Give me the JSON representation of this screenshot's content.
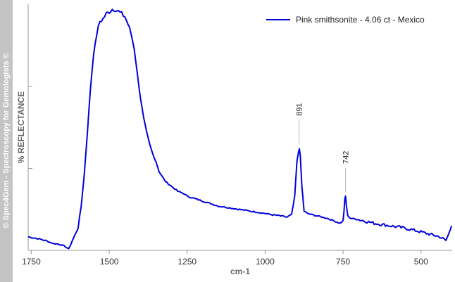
{
  "watermark": "© Spec4Gem - Spectroscopy for Gemologists ©",
  "colors": {
    "series": "#0000dd",
    "axis": "#999999",
    "band": "#c4c4c4"
  },
  "chart_data": {
    "type": "line",
    "title": "",
    "xlabel": "cm-1",
    "ylabel": "%  REFLECTANCE",
    "x_reversed": true,
    "xlim": [
      1760,
      400
    ],
    "ylim": [
      0,
      100
    ],
    "x_ticks": [
      1750,
      1500,
      1250,
      1000,
      750,
      500
    ],
    "x_tick_labels": [
      "1750",
      "1500",
      "1250",
      "1000",
      "750",
      "500"
    ],
    "y_ticks": [
      33.3,
      66.7
    ],
    "grid": false,
    "legend_position": "top-right",
    "series": [
      {
        "name": "Pink smithsonite - 4.06 ct - Mexico",
        "color": "#0000dd",
        "points": [
          [
            1760,
            5.5
          ],
          [
            1740,
            5.0
          ],
          [
            1720,
            4.5
          ],
          [
            1700,
            3.8
          ],
          [
            1680,
            2.8
          ],
          [
            1660,
            2.5
          ],
          [
            1640,
            1.5
          ],
          [
            1630,
            0.5
          ],
          [
            1620,
            3.5
          ],
          [
            1600,
            9.0
          ],
          [
            1590,
            18.0
          ],
          [
            1580,
            31.0
          ],
          [
            1570,
            48.0
          ],
          [
            1560,
            66.0
          ],
          [
            1550,
            80.0
          ],
          [
            1540,
            88.0
          ],
          [
            1530,
            93.0
          ],
          [
            1520,
            94.0
          ],
          [
            1510,
            96.0
          ],
          [
            1500,
            97.0
          ],
          [
            1490,
            98.0
          ],
          [
            1480,
            98.0
          ],
          [
            1470,
            97.0
          ],
          [
            1460,
            96.0
          ],
          [
            1450,
            95.0
          ],
          [
            1440,
            92.0
          ],
          [
            1430,
            88.0
          ],
          [
            1420,
            82.0
          ],
          [
            1410,
            72.0
          ],
          [
            1400,
            62.0
          ],
          [
            1390,
            54.0
          ],
          [
            1380,
            48.0
          ],
          [
            1370,
            43.0
          ],
          [
            1360,
            39.0
          ],
          [
            1350,
            36.0
          ],
          [
            1340,
            32.0
          ],
          [
            1320,
            28.0
          ],
          [
            1300,
            26.0
          ],
          [
            1280,
            24.0
          ],
          [
            1260,
            23.0
          ],
          [
            1250,
            22.0
          ],
          [
            1200,
            20.0
          ],
          [
            1150,
            18.0
          ],
          [
            1100,
            17.0
          ],
          [
            1050,
            16.0
          ],
          [
            1000,
            15.0
          ],
          [
            980,
            14.5
          ],
          [
            950,
            14.0
          ],
          [
            930,
            13.5
          ],
          [
            915,
            14.5
          ],
          [
            905,
            22.0
          ],
          [
            898,
            36.0
          ],
          [
            893,
            40.0
          ],
          [
            890,
            41.5
          ],
          [
            887,
            38.0
          ],
          [
            882,
            26.0
          ],
          [
            875,
            16.0
          ],
          [
            865,
            15.0
          ],
          [
            850,
            14.5
          ],
          [
            800,
            13.0
          ],
          [
            780,
            12.0
          ],
          [
            760,
            11.0
          ],
          [
            750,
            12.0
          ],
          [
            747,
            16.0
          ],
          [
            744,
            21.0
          ],
          [
            742,
            22.0
          ],
          [
            739,
            18.0
          ],
          [
            735,
            14.0
          ],
          [
            725,
            13.0
          ],
          [
            700,
            12.5
          ],
          [
            650,
            11.0
          ],
          [
            600,
            10.0
          ],
          [
            550,
            9.0
          ],
          [
            500,
            7.5
          ],
          [
            470,
            6.5
          ],
          [
            440,
            5.5
          ],
          [
            420,
            4.0
          ],
          [
            410,
            7.0
          ],
          [
            402,
            10.0
          ]
        ]
      }
    ],
    "annotations": [
      {
        "label": "891",
        "x": 891,
        "y": 41.5
      },
      {
        "label": "742",
        "x": 742,
        "y": 22.0
      }
    ]
  }
}
